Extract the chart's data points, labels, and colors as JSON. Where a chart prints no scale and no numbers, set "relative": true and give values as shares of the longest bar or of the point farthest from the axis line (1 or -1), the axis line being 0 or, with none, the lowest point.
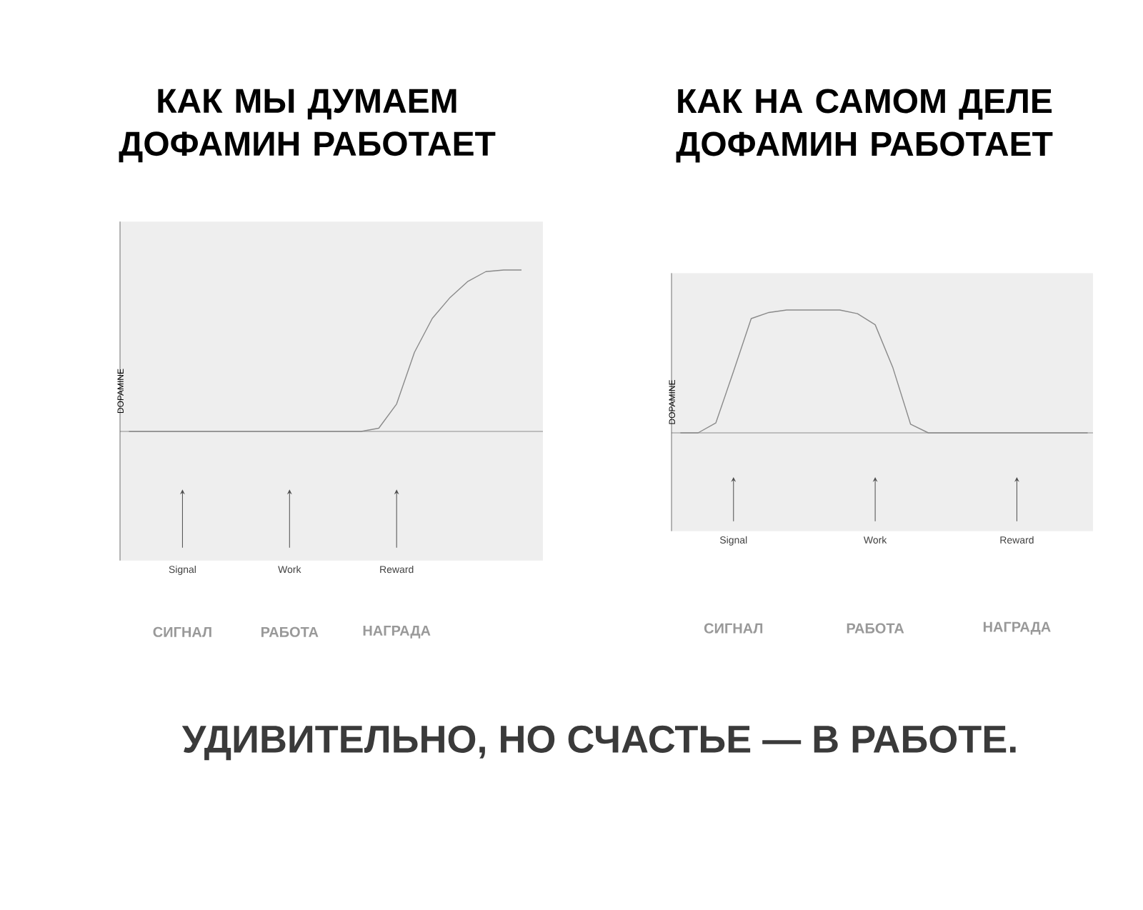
{
  "chart_data": [
    {
      "type": "line",
      "title": "КАК МЫ ДУМАЕМ ДОФАМИН РАБОТАЕТ",
      "ylabel": "DOPAMINE",
      "relative": true,
      "color": "#8a8a8a",
      "categories": [
        null,
        null,
        null,
        "Signal",
        null,
        null,
        null,
        null,
        null,
        "Work",
        null,
        null,
        null,
        null,
        null,
        "Reward",
        null,
        null,
        null,
        null,
        null,
        null,
        null,
        null
      ],
      "values": [
        0,
        0,
        0,
        0,
        0,
        0,
        0,
        0,
        0,
        0,
        0,
        0,
        0,
        0,
        0.02,
        0.17,
        0.49,
        0.7,
        0.83,
        0.93,
        0.99,
        1,
        1,
        null
      ],
      "annotations": [
        "СИГНАЛ",
        "РАБОТА",
        "НАГРАДА"
      ]
    },
    {
      "type": "line",
      "title": "КАК НА САМОМ ДЕЛЕ ДОФАМИН РАБОТАЕТ",
      "ylabel": "DOPAMINE",
      "relative": true,
      "color": "#8a8a8a",
      "categories": [
        null,
        null,
        null,
        "Signal",
        null,
        null,
        null,
        null,
        null,
        null,
        null,
        "Work",
        null,
        null,
        null,
        null,
        null,
        null,
        null,
        "Reward",
        null,
        null,
        null,
        null
      ],
      "values": [
        0,
        0,
        0.08,
        0.5,
        0.93,
        0.98,
        1,
        1,
        1,
        1,
        0.97,
        0.88,
        0.53,
        0.07,
        0,
        0,
        0,
        0,
        0,
        0,
        0,
        0,
        0,
        0
      ],
      "annotations": [
        "СИГНАЛ",
        "РАБОТА",
        "НАГРАДА"
      ]
    },
    {
      "type": "other",
      "title": "УДИВИТЕЛЬНО, НО СЧАСТЬЕ — В РАБОТЕ."
    }
  ]
}
